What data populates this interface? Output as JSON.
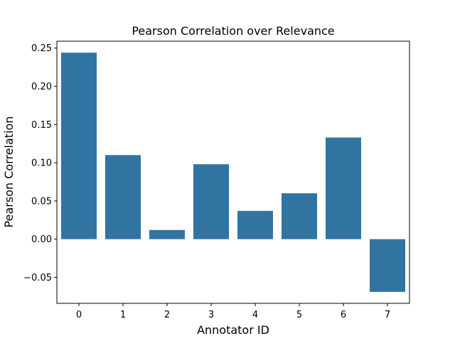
{
  "chart_data": {
    "type": "bar",
    "title": "Pearson Correlation over Relevance",
    "xlabel": "Annotator ID",
    "ylabel": "Pearson Correlation",
    "categories": [
      "0",
      "1",
      "2",
      "3",
      "4",
      "5",
      "6",
      "7"
    ],
    "values": [
      0.244,
      0.11,
      0.012,
      0.098,
      0.037,
      0.06,
      0.133,
      -0.069
    ],
    "ylim": [
      -0.084,
      0.259
    ],
    "yticks": [
      -0.05,
      0.0,
      0.05,
      0.1,
      0.15,
      0.2,
      0.25
    ],
    "ytick_labels": [
      "−0.05",
      "0.00",
      "0.05",
      "0.10",
      "0.15",
      "0.20",
      "0.25"
    ],
    "bar_color": "#3274a1",
    "grid": false,
    "legend": "none"
  }
}
